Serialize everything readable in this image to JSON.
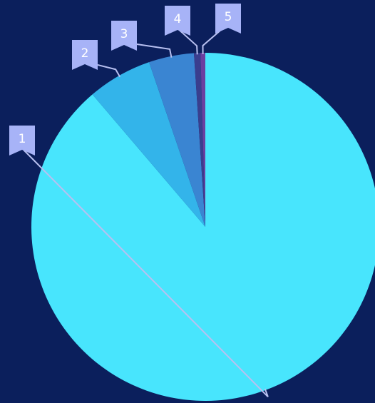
{
  "colors": {
    "background": "#0b1f5c",
    "leader_line": "#b8c0f0",
    "flag": "#a7b3f7"
  },
  "chart_data": {
    "type": "pie",
    "title": "",
    "legend": "none",
    "start_angle_deg": 0,
    "direction": "clockwise",
    "slices": [
      {
        "label": "1",
        "value": 82.4,
        "color": "#48e5fd"
      },
      {
        "label": "2",
        "value": 6.0,
        "color": "#33b4ea"
      },
      {
        "label": "3",
        "value": 4.2,
        "color": "#3a85d2"
      },
      {
        "label": "4",
        "value": 0.6,
        "color": "#3a3e8e"
      },
      {
        "label": "5",
        "value": 0.0,
        "color": "#6b3fa0"
      }
    ]
  }
}
